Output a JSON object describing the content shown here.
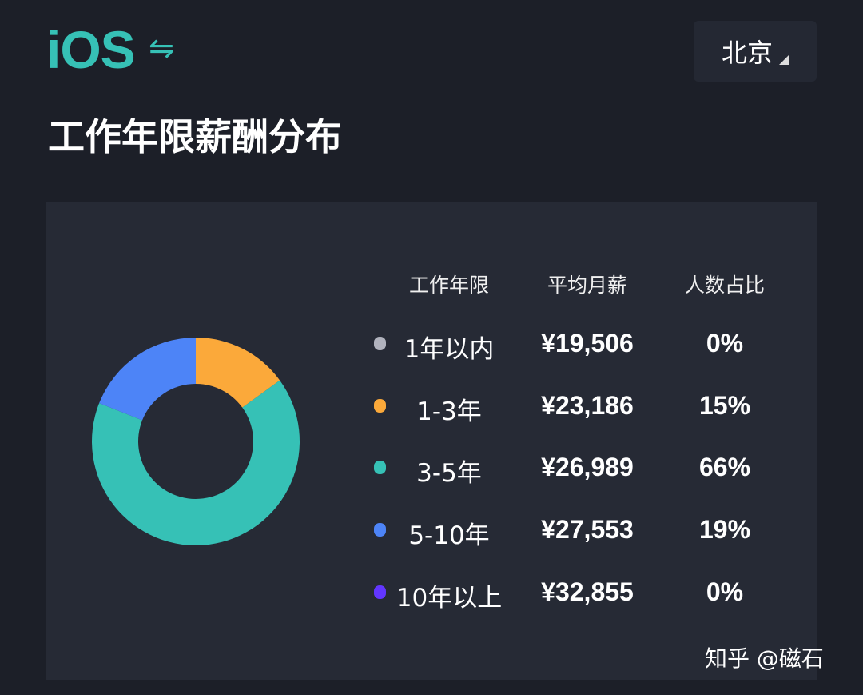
{
  "header": {
    "title": "iOS",
    "switch_icon": "swap-arrows-icon",
    "city": "北京"
  },
  "page_title": "工作年限薪酬分布",
  "table": {
    "headers": [
      "工作年限",
      "平均月薪",
      "人数占比"
    ],
    "rows": [
      {
        "range": "1年以内",
        "salary": "¥19,506",
        "share": "0%",
        "color": "#b0b2bd"
      },
      {
        "range": "1-3年",
        "salary": "¥23,186",
        "share": "15%",
        "color": "#fba93a"
      },
      {
        "range": "3-5年",
        "salary": "¥26,989",
        "share": "66%",
        "color": "#36c1b6"
      },
      {
        "range": "5-10年",
        "salary": "¥27,553",
        "share": "19%",
        "color": "#4d84f7"
      },
      {
        "range": "10年以上",
        "salary": "¥32,855",
        "share": "0%",
        "color": "#6236ff"
      }
    ]
  },
  "chart_data": {
    "type": "pie",
    "donut": true,
    "categories": [
      "1年以内",
      "1-3年",
      "3-5年",
      "5-10年",
      "10年以上"
    ],
    "values": [
      0,
      15,
      66,
      19,
      0
    ],
    "colors": [
      "#b0b2bd",
      "#fba93a",
      "#36c1b6",
      "#4d84f7",
      "#6236ff"
    ],
    "start": "top",
    "direction": "clockwise"
  },
  "watermark": "知乎 @磁石"
}
